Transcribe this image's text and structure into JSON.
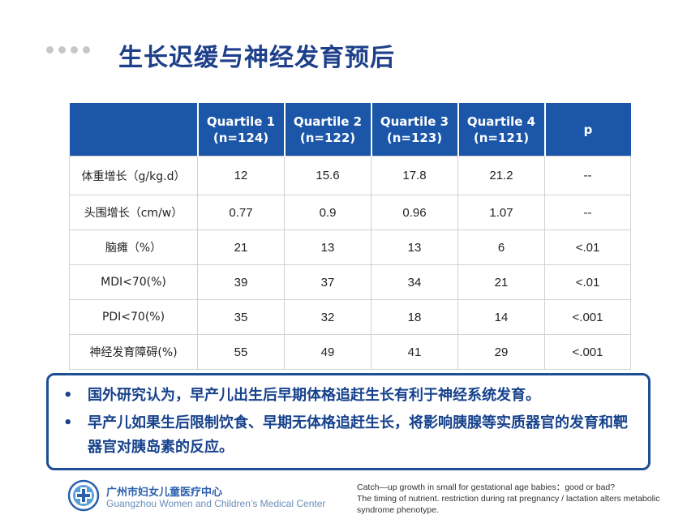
{
  "title": "生长迟缓与神经发育预后",
  "table": {
    "headers": [
      {
        "line1": "",
        "line2": ""
      },
      {
        "line1": "Quartile 1",
        "line2": "(n=124)"
      },
      {
        "line1": "Quartile 2",
        "line2": "(n=122)"
      },
      {
        "line1": "Quartile 3",
        "line2": "(n=123)"
      },
      {
        "line1": "Quartile 4",
        "line2": "(n=121)"
      },
      {
        "line1": "p",
        "line2": ""
      }
    ],
    "rows": [
      [
        "体重增长（g/kg.d）",
        "12",
        "15.6",
        "17.8",
        "21.2",
        "--"
      ],
      [
        "头围增长（cm/w）",
        "0.77",
        "0.9",
        "0.96",
        "1.07",
        "--"
      ],
      [
        "脑瘫（%）",
        "21",
        "13",
        "13",
        "6",
        "<.01"
      ],
      [
        "MDI<70(%)",
        "39",
        "37",
        "34",
        "21",
        "<.01"
      ],
      [
        "PDI<70(%)",
        "35",
        "32",
        "18",
        "14",
        "<.001"
      ],
      [
        "神经发育障碍(%)",
        "55",
        "49",
        "41",
        "29",
        "<.001"
      ]
    ]
  },
  "notes": {
    "bullet_mark": "•",
    "items": [
      "国外研究认为，早产儿出生后早期体格追赶生长有利于神经系统发育。",
      "早产儿如果生后限制饮食、早期无体格追赶生长，将影响胰腺等实质器官的发育和靶器官对胰岛素的反应。"
    ]
  },
  "footer": {
    "hospital_cn": "广州市妇女儿童医疗中心",
    "hospital_en": "Guangzhou Women and Children’s Medical Center",
    "references": [
      "Catch—up growth in small for gestational age babies：good or bad?",
      "The timing of nutrient. restriction during rat pregnancy / lactation alters metabolic syndrome phenotype."
    ]
  },
  "colors": {
    "header_blue": "#1b56a8",
    "title_blue": "#1e3f8a",
    "border_blue": "#1e4e96"
  },
  "icons": {
    "logo": "hospital-cross-logo"
  }
}
